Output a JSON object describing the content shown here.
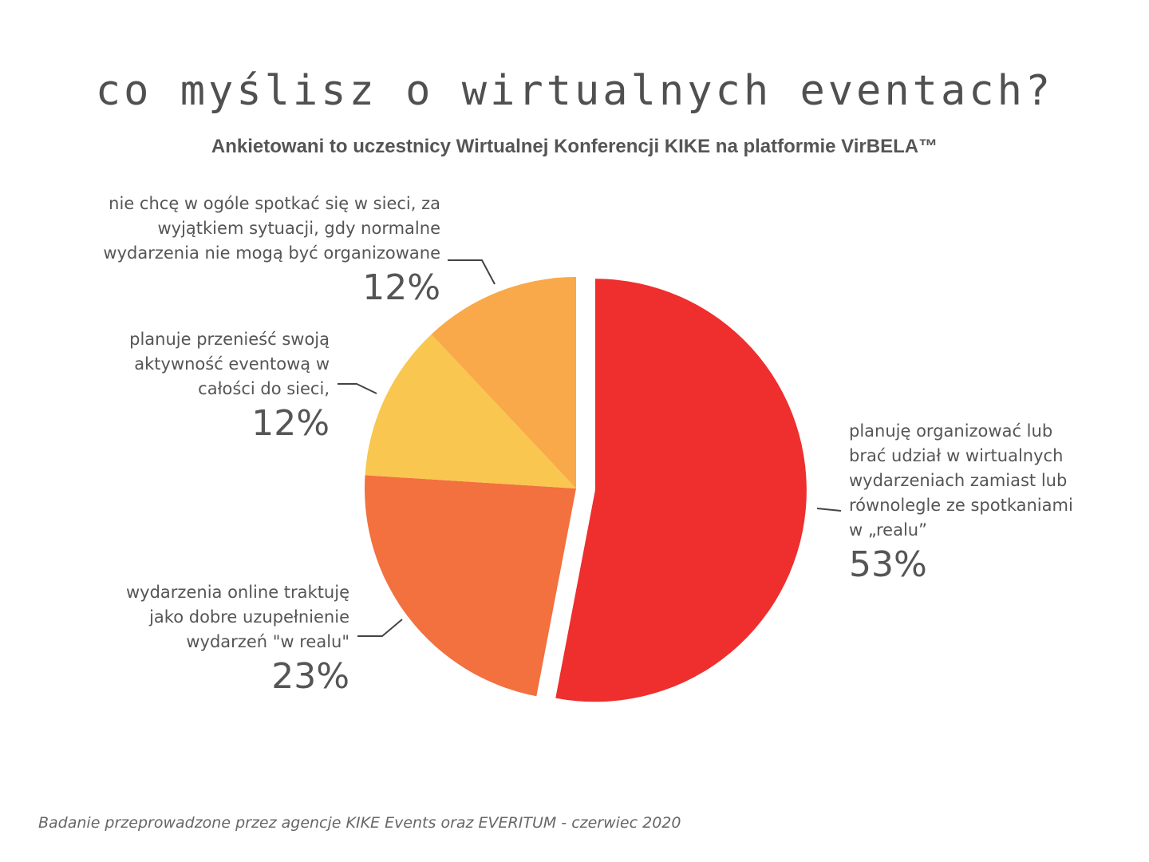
{
  "title": "co myślisz o wirtualnych eventach?",
  "subtitle": "Ankietowani to uczestnicy Wirtualnej Konferencji KIKE na platformie VirBELA™",
  "footer": "Badanie przeprowadzone przez agencje KIKE Events oraz  EVERITUM - czerwiec 2020",
  "chart_data": {
    "type": "pie",
    "title": "co myślisz o wirtualnych eventach?",
    "subtitle": "Ankietowani to uczestnicy Wirtualnej Konferencji KIKE na platformie VirBELA™",
    "slices": [
      {
        "label": "planuję organizować lub brać udział w wirtualnych wydarzeniach zamiast lub równolegle ze spotkaniami w „realu”",
        "value": 53,
        "display": "53%",
        "color": "#EF2E2E"
      },
      {
        "label": "wydarzenia online traktuję jako dobre uzupełnienie wydarzeń \"w realu\"",
        "value": 23,
        "display": "23%",
        "color": "#F3703F"
      },
      {
        "label": "planuje przenieść swoją aktywność eventową w całości do sieci,",
        "value": 12,
        "display": "12%",
        "color": "#F9C74F"
      },
      {
        "label": "nie chcę w ogóle spotkać się w sieci, za wyjątkiem sytuacji, gdy normalne wydarzenia nie mogą być organizowane",
        "value": 12,
        "display": "12%",
        "color": "#F9A94A"
      }
    ],
    "legend": "none"
  }
}
